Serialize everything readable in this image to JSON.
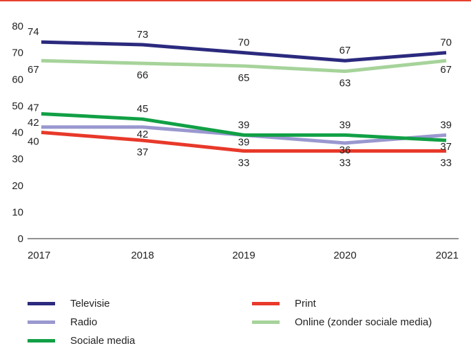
{
  "colors": {
    "Televisie": "#2b2a7e",
    "Radio": "#9a98cf",
    "Sociale media": "#11a045",
    "Print": "#e8392a",
    "Online (zonder sociale media)": "#a6d39a",
    "top_rule": "#e8412e"
  },
  "chart_data": {
    "type": "line",
    "x": [
      "2017",
      "2018",
      "2019",
      "2020",
      "2021"
    ],
    "ylim": [
      0,
      80
    ],
    "yticks": [
      "0",
      "10",
      "20",
      "30",
      "40",
      "50",
      "60",
      "70",
      "80"
    ],
    "grid": false,
    "legend_position": "bottom",
    "series": [
      {
        "name": "Televisie",
        "values": [
          74,
          73,
          70,
          67,
          70
        ]
      },
      {
        "name": "Radio",
        "values": [
          42,
          42,
          39,
          36,
          39
        ]
      },
      {
        "name": "Sociale media",
        "values": [
          47,
          45,
          39,
          39,
          37
        ]
      },
      {
        "name": "Print",
        "values": [
          40,
          37,
          33,
          33,
          33
        ]
      },
      {
        "name": "Online (zonder sociale media)",
        "values": [
          67,
          66,
          65,
          63,
          67
        ]
      }
    ]
  },
  "legend": [
    {
      "label": "Televisie",
      "series": "Televisie"
    },
    {
      "label": "Radio",
      "series": "Radio"
    },
    {
      "label": "Sociale media",
      "series": "Sociale media"
    },
    {
      "label": "Print",
      "series": "Print"
    },
    {
      "label": "Online (zonder sociale media)",
      "series": "Online (zonder sociale media)"
    }
  ]
}
